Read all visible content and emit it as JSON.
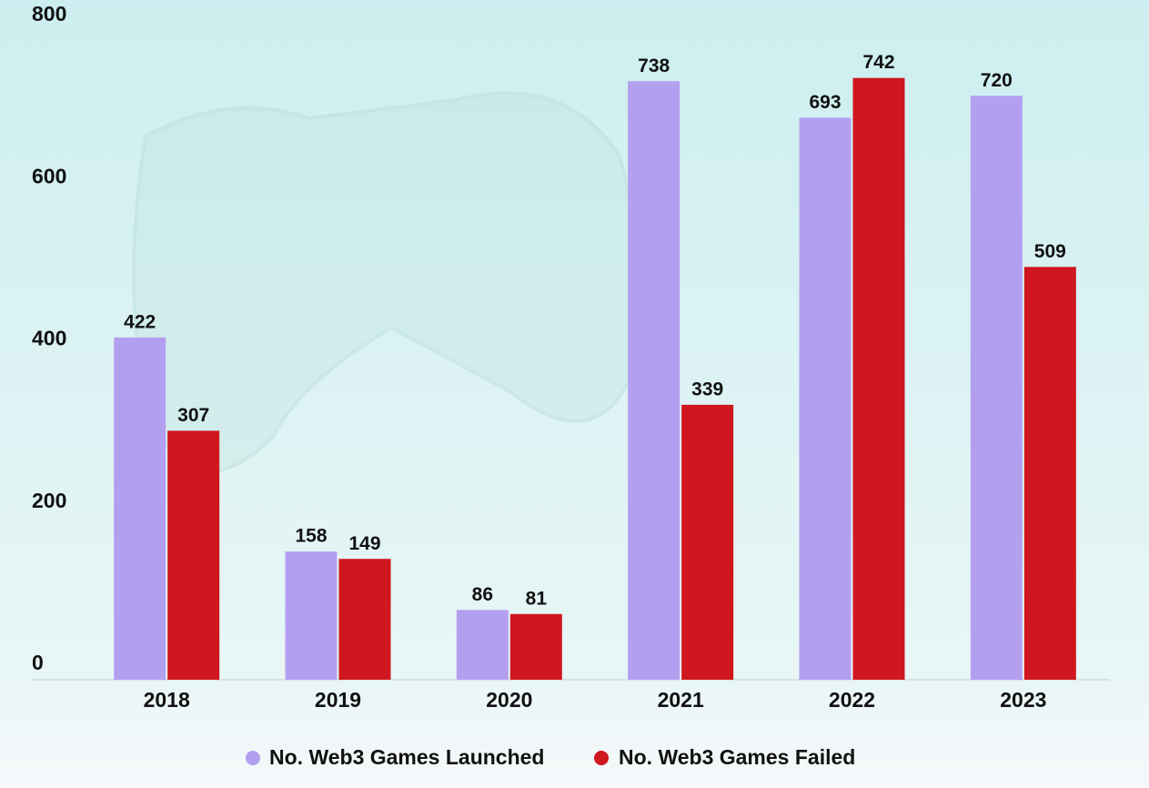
{
  "chart_data": {
    "type": "bar",
    "categories": [
      "2018",
      "2019",
      "2020",
      "2021",
      "2022",
      "2023"
    ],
    "series": [
      {
        "name": "No. Web3 Games Launched",
        "color": "#b39ff0",
        "values": [
          422,
          158,
          86,
          738,
          693,
          720
        ]
      },
      {
        "name": "No. Web3 Games Failed",
        "color": "#d0161e",
        "values": [
          307,
          149,
          81,
          339,
          742,
          509
        ]
      }
    ],
    "ylim": [
      0,
      800
    ],
    "yticks": [
      0,
      200,
      400,
      600,
      800
    ],
    "grid": false
  }
}
